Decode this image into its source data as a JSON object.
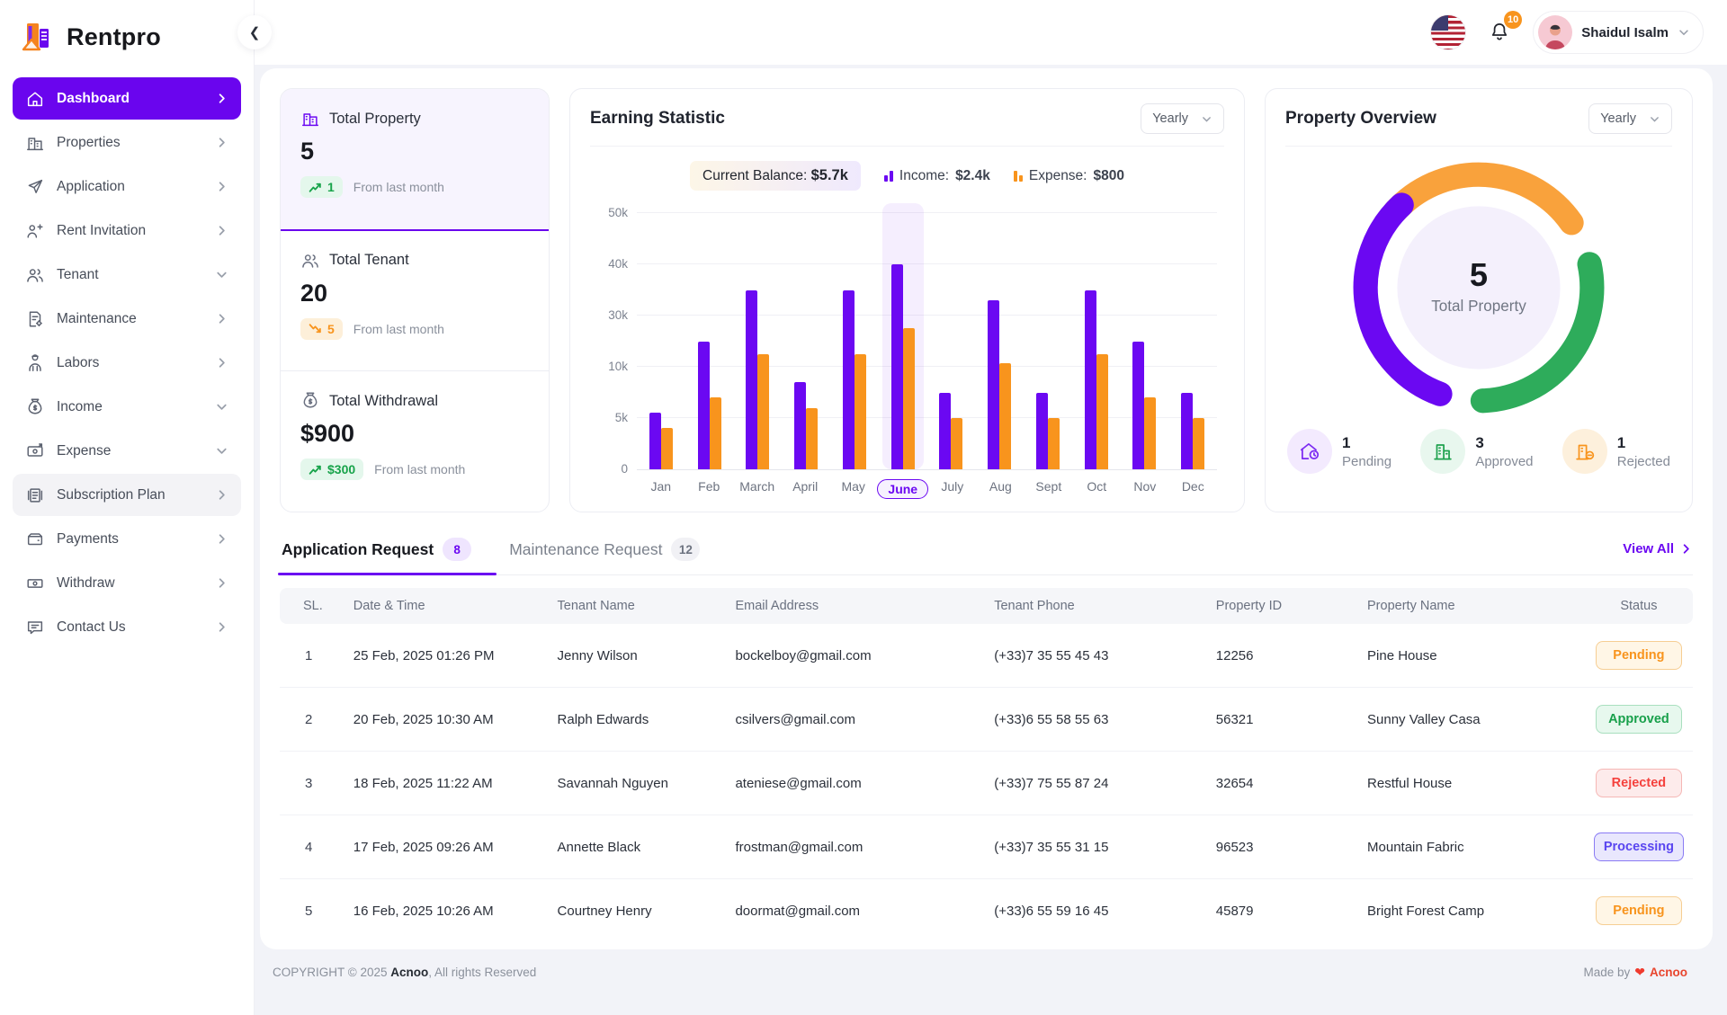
{
  "brand": {
    "name": "Rentpro"
  },
  "topbar": {
    "notification_count": "10",
    "user": {
      "name": "Shaidul Isalm"
    },
    "icons": {
      "language_flag": "us-flag-icon",
      "notifications": "bell-icon",
      "collapse": "chevron-left-icon",
      "user_menu": "chevron-down-icon"
    }
  },
  "sidebar": {
    "items": [
      {
        "label": "Dashboard",
        "icon": "home-icon",
        "chevron": "right",
        "state": "active"
      },
      {
        "label": "Properties",
        "icon": "building-icon",
        "chevron": "right",
        "state": "default"
      },
      {
        "label": "Application",
        "icon": "send-icon",
        "chevron": "right",
        "state": "default"
      },
      {
        "label": "Rent Invitation",
        "icon": "invite-icon",
        "chevron": "right",
        "state": "default"
      },
      {
        "label": "Tenant",
        "icon": "users-icon",
        "chevron": "down",
        "state": "default"
      },
      {
        "label": "Maintenance",
        "icon": "document-gear-icon",
        "chevron": "right",
        "state": "default"
      },
      {
        "label": "Labors",
        "icon": "worker-icon",
        "chevron": "right",
        "state": "default"
      },
      {
        "label": "Income",
        "icon": "money-bag-icon",
        "chevron": "down",
        "state": "default"
      },
      {
        "label": "Expense",
        "icon": "money-out-icon",
        "chevron": "down",
        "state": "default"
      },
      {
        "label": "Subscription Plan",
        "icon": "subscription-icon",
        "chevron": "right",
        "state": "hover"
      },
      {
        "label": "Payments",
        "icon": "wallet-icon",
        "chevron": "right",
        "state": "default"
      },
      {
        "label": "Withdraw",
        "icon": "cash-icon",
        "chevron": "right",
        "state": "default"
      },
      {
        "label": "Contact Us",
        "icon": "chat-icon",
        "chevron": "right",
        "state": "default"
      }
    ]
  },
  "stats": [
    {
      "icon": "building-icon",
      "label": "Total Property",
      "value": "5",
      "badge": "1",
      "badge_trend": "up",
      "badge_tone": "green",
      "note": "From last month",
      "highlight": true
    },
    {
      "icon": "users-icon",
      "label": "Total Tenant",
      "value": "20",
      "badge": "5",
      "badge_trend": "down",
      "badge_tone": "orange",
      "note": "From last month",
      "highlight": false
    },
    {
      "icon": "money-bag-icon",
      "label": "Total Withdrawal",
      "value": "$900",
      "badge": "$300",
      "badge_trend": "up",
      "badge_tone": "green",
      "note": "From last month",
      "highlight": false
    }
  ],
  "chart_data": [
    {
      "id": "earning-statistic",
      "type": "bar",
      "title": "Earning Statistic",
      "period_selector": "Yearly",
      "categories": [
        "Jan",
        "Feb",
        "March",
        "April",
        "May",
        "June",
        "July",
        "Aug",
        "Sept",
        "Oct",
        "Nov",
        "Dec"
      ],
      "series": [
        {
          "name": "Income",
          "color": "#6B08F2",
          "values_thousands": [
            5.5,
            20,
            35,
            8.5,
            35,
            40,
            7.5,
            33,
            7.5,
            35,
            20,
            7.5
          ]
        },
        {
          "name": "Expense",
          "color": "#F8941D",
          "values_thousands": [
            4,
            7,
            15,
            6,
            15,
            25,
            5,
            11.5,
            5,
            15,
            7,
            5
          ]
        }
      ],
      "y_tick_labels": [
        "0",
        "5k",
        "10k",
        "30k",
        "40k",
        "50k"
      ],
      "highlighted_category": "June",
      "grid": true,
      "legend": {
        "balance_label": "Current Balance:",
        "balance_value": "$5.7k",
        "income_label": "Income:",
        "income_value": "$2.4k",
        "expense_label": "Expense:",
        "expense_value": "$800"
      }
    },
    {
      "id": "property-overview",
      "type": "donut",
      "title": "Property Overview",
      "period_selector": "Yearly",
      "center": {
        "value": "5",
        "label": "Total Property"
      },
      "segments": [
        {
          "label": "Pending",
          "value": 1,
          "color": "#6B08F2",
          "icon": "house-clock-icon"
        },
        {
          "label": "Approved",
          "value": 3,
          "color": "#2EAC5B",
          "icon": "building-check-icon"
        },
        {
          "label": "Rejected",
          "value": 1,
          "color": "#F9A23C",
          "icon": "building-minus-icon"
        }
      ]
    }
  ],
  "requests": {
    "tabs": [
      {
        "label": "Application Request",
        "count": "8",
        "active": true
      },
      {
        "label": "Maintenance Request",
        "count": "12",
        "active": false
      }
    ],
    "view_all_label": "View All",
    "columns": [
      "SL.",
      "Date & Time",
      "Tenant Name",
      "Email Address",
      "Tenant Phone",
      "Property ID",
      "Property Name",
      "Status"
    ],
    "rows": [
      {
        "sl": "1",
        "datetime": "25 Feb, 2025  01:26 PM",
        "tenant": "Jenny Wilson",
        "email": "bockelboy@gmail.com",
        "phone": "(+33)7 35 55 45 43",
        "property_id": "12256",
        "property_name": "Pine House",
        "status": "Pending",
        "status_tone": "pending"
      },
      {
        "sl": "2",
        "datetime": "20 Feb, 2025  10:30 AM",
        "tenant": "Ralph Edwards",
        "email": "csilvers@gmail.com",
        "phone": "(+33)6 55 58 55 63",
        "property_id": "56321",
        "property_name": "Sunny Valley Casa",
        "status": "Approved",
        "status_tone": "approved"
      },
      {
        "sl": "3",
        "datetime": "18 Feb, 2025  11:22 AM",
        "tenant": "Savannah Nguyen",
        "email": "ateniese@gmail.com",
        "phone": "(+33)7 75 55 87 24",
        "property_id": "32654",
        "property_name": "Restful House",
        "status": "Rejected",
        "status_tone": "rejected"
      },
      {
        "sl": "4",
        "datetime": "17 Feb, 2025  09:26 AM",
        "tenant": "Annette Black",
        "email": "frostman@gmail.com",
        "phone": "(+33)7 35 55 31 15",
        "property_id": "96523",
        "property_name": "Mountain Fabric",
        "status": "Processing",
        "status_tone": "processing"
      },
      {
        "sl": "5",
        "datetime": "16 Feb, 2025  10:26 AM",
        "tenant": "Courtney Henry",
        "email": "doormat@gmail.com",
        "phone": "(+33)6 55 59 16 45",
        "property_id": "45879",
        "property_name": "Bright Forest Camp",
        "status": "Pending",
        "status_tone": "pending"
      }
    ]
  },
  "footer": {
    "copyright_prefix": "COPYRIGHT © 2025",
    "copyright_brand": "Acnoo",
    "copyright_suffix": ", All rights Reserved",
    "made_by_label": "Made by",
    "made_by_heart": "❤",
    "made_by_brand": "Acnoo"
  }
}
